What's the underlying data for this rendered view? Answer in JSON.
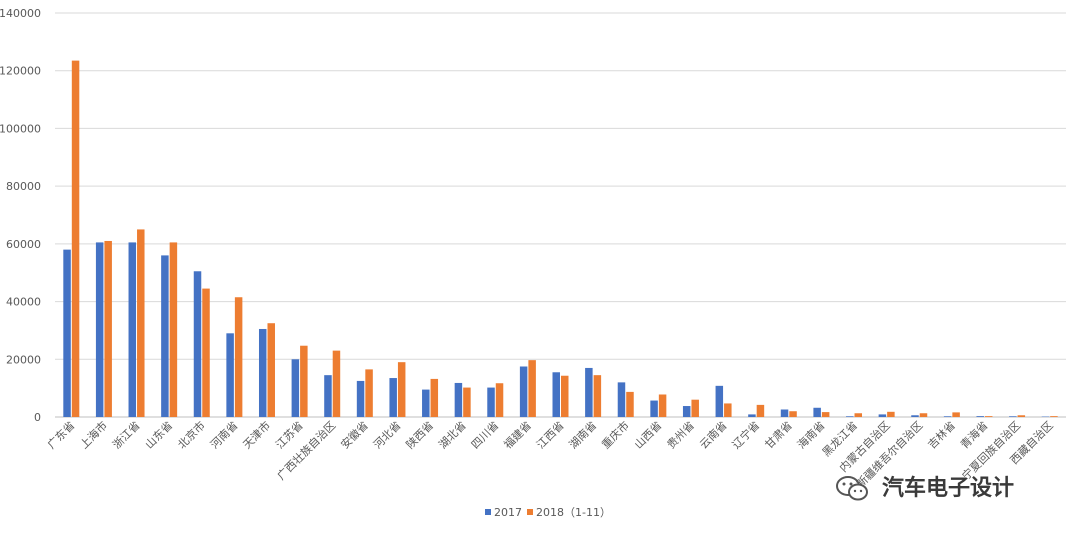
{
  "chart_data": {
    "type": "bar",
    "title": "",
    "xlabel": "",
    "ylabel": "",
    "ylim": [
      0,
      140000
    ],
    "yticks": [
      0,
      20000,
      40000,
      60000,
      80000,
      100000,
      120000,
      140000
    ],
    "grid": true,
    "legend_position": "bottom",
    "categories": [
      "广东省",
      "上海市",
      "浙江省",
      "山东省",
      "北京市",
      "河南省",
      "天津市",
      "江苏省",
      "广西壮族自治区",
      "安徽省",
      "河北省",
      "陕西省",
      "湖北省",
      "四川省",
      "福建省",
      "江西省",
      "湖南省",
      "重庆市",
      "山西省",
      "贵州省",
      "云南省",
      "辽宁省",
      "甘肃省",
      "海南省",
      "黑龙江省",
      "内蒙古自治区",
      "新疆维吾尔自治区",
      "吉林省",
      "青海省",
      "宁夏回族自治区",
      "西藏自治区"
    ],
    "series": [
      {
        "name": "2017",
        "color": "#4472c4",
        "values": [
          58000,
          60500,
          60500,
          56000,
          50500,
          29000,
          30500,
          20000,
          14500,
          12500,
          13500,
          9500,
          11800,
          10200,
          17500,
          15500,
          17000,
          12000,
          5700,
          3800,
          10800,
          900,
          2600,
          3200,
          250,
          900,
          600,
          250,
          300,
          250,
          150
        ]
      },
      {
        "name": "2018（1-11）",
        "color": "#ed7d31",
        "values": [
          123500,
          61000,
          65000,
          60500,
          44500,
          41500,
          32500,
          24700,
          23000,
          16500,
          19000,
          13200,
          10200,
          11700,
          19700,
          14300,
          14500,
          8700,
          7800,
          6000,
          4700,
          4200,
          2000,
          1700,
          1300,
          1800,
          1300,
          1600,
          300,
          600,
          300
        ]
      }
    ]
  },
  "watermark": {
    "text": "汽车电子设计",
    "icon": "wechat-icon"
  }
}
